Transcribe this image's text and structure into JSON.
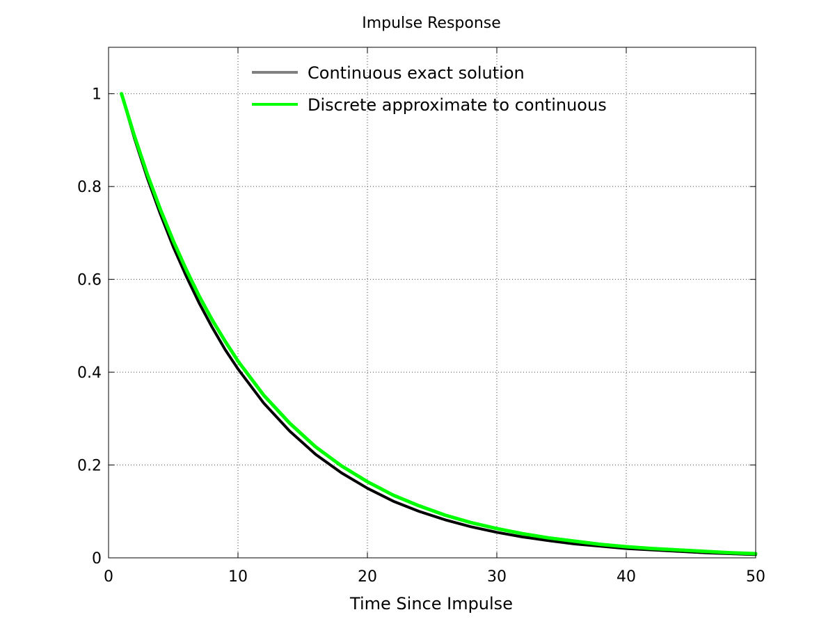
{
  "chart_data": {
    "type": "line",
    "title": "Impulse Response",
    "xlabel": "Time Since Impulse",
    "ylabel": "",
    "xlim": [
      0,
      50
    ],
    "ylim": [
      0,
      1.1
    ],
    "xticks": [
      0,
      10,
      20,
      30,
      40,
      50
    ],
    "xtick_labels": [
      "0",
      "10",
      "20",
      "30",
      "40",
      "50"
    ],
    "yticks": [
      0,
      0.2,
      0.4,
      0.6,
      0.8,
      1
    ],
    "ytick_labels": [
      "0",
      "0.2",
      "0.4",
      "0.6",
      "0.8",
      "1"
    ],
    "grid": true,
    "legend_position": "top-center",
    "series": [
      {
        "name": "Continuous exact solution",
        "legend_color": "#808080",
        "line_color": "#000000",
        "x": [
          1,
          2,
          3,
          4,
          5,
          6,
          7,
          8,
          9,
          10,
          12,
          14,
          16,
          18,
          20,
          22,
          24,
          26,
          28,
          30,
          32,
          34,
          36,
          38,
          40,
          42,
          44,
          46,
          48,
          50
        ],
        "y": [
          1.0,
          0.904,
          0.818,
          0.741,
          0.67,
          0.607,
          0.549,
          0.497,
          0.449,
          0.407,
          0.333,
          0.273,
          0.223,
          0.183,
          0.15,
          0.122,
          0.1,
          0.082,
          0.067,
          0.055,
          0.045,
          0.037,
          0.03,
          0.025,
          0.02,
          0.017,
          0.014,
          0.011,
          0.009,
          0.007
        ]
      },
      {
        "name": "Discrete approximate to continuous",
        "legend_color": "#00ff00",
        "line_color": "#00ff00",
        "x": [
          1,
          2,
          3,
          4,
          5,
          6,
          7,
          8,
          9,
          10,
          12,
          14,
          16,
          18,
          20,
          22,
          24,
          26,
          28,
          30,
          32,
          34,
          36,
          38,
          40,
          42,
          44,
          46,
          48,
          50
        ],
        "y": [
          1.0,
          0.909,
          0.826,
          0.751,
          0.683,
          0.621,
          0.564,
          0.513,
          0.467,
          0.424,
          0.35,
          0.29,
          0.239,
          0.198,
          0.164,
          0.135,
          0.112,
          0.092,
          0.076,
          0.063,
          0.052,
          0.043,
          0.036,
          0.029,
          0.024,
          0.02,
          0.017,
          0.014,
          0.011,
          0.009
        ]
      }
    ]
  }
}
